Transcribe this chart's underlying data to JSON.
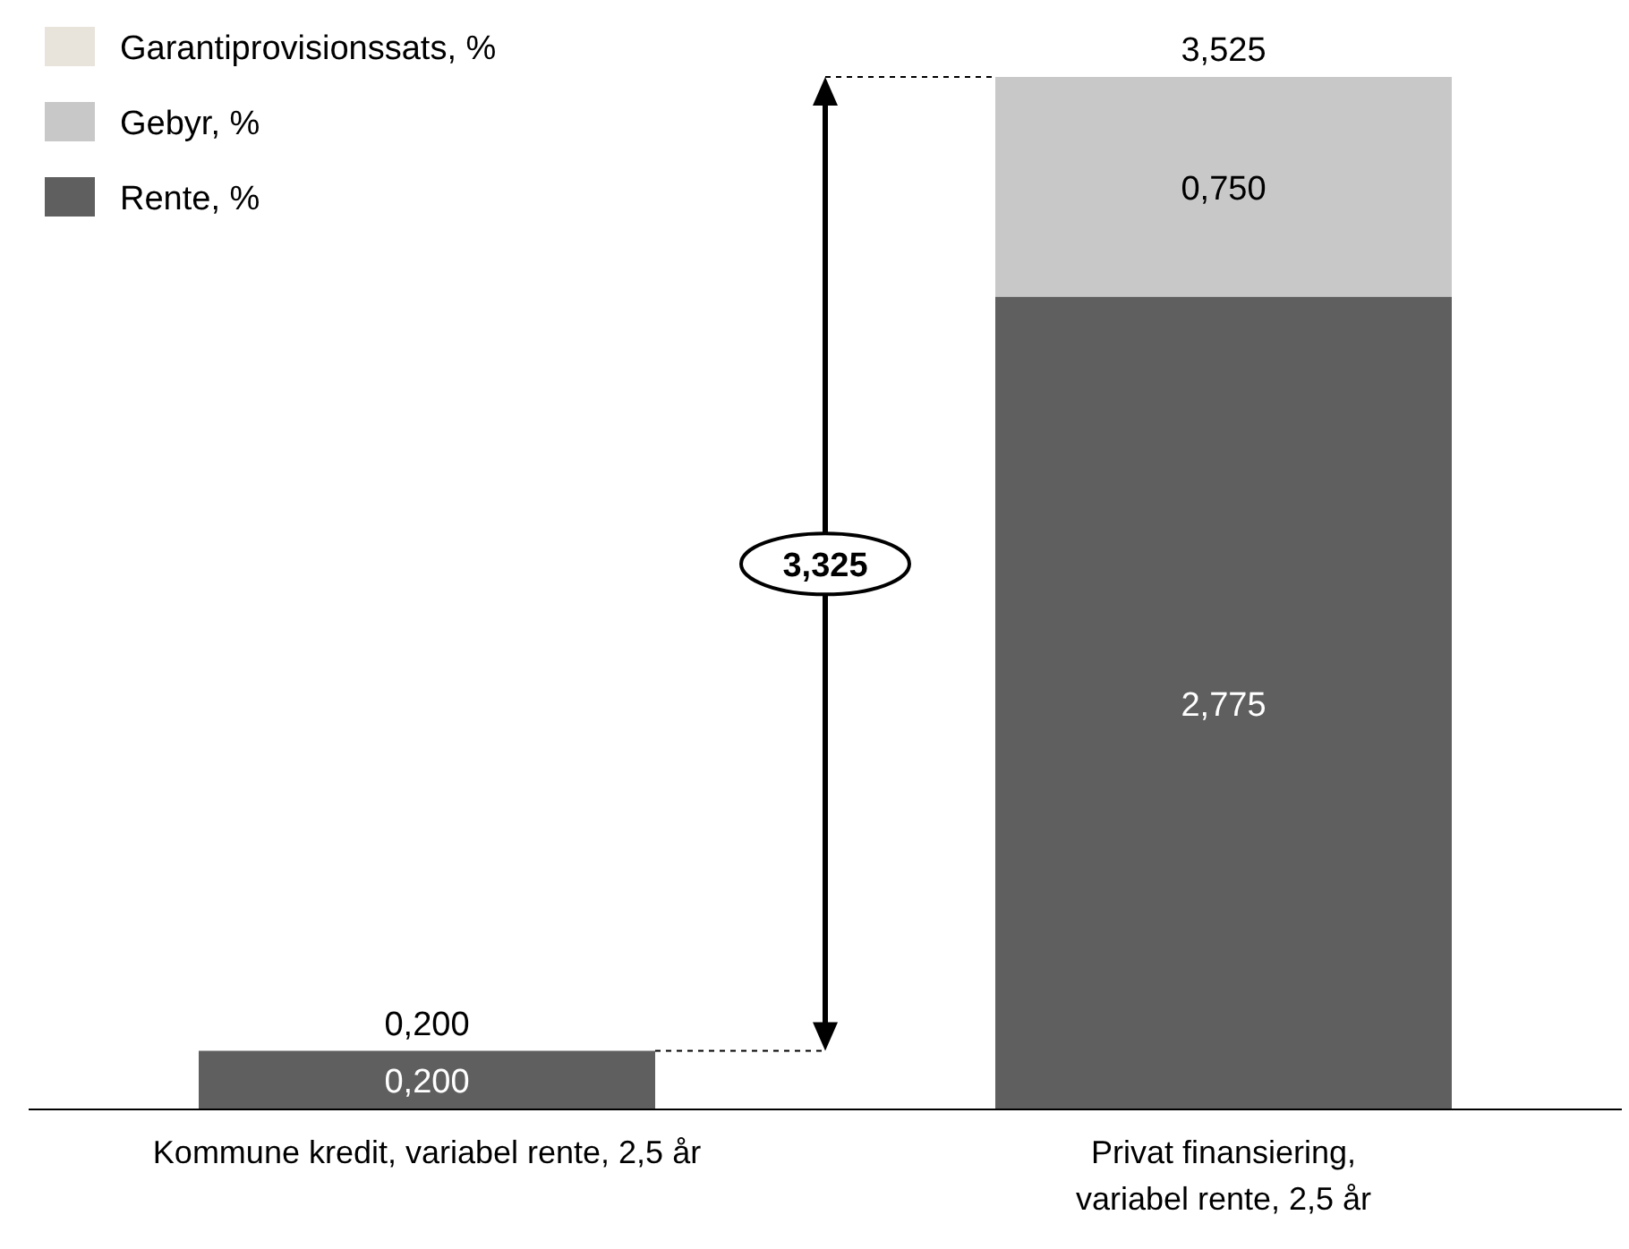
{
  "chart_data": {
    "type": "bar",
    "stacked": true,
    "categories": [
      "Kommune kredit, variabel rente, 2,5 år",
      "Privat finansiering,\nvariabel rente, 2,5 år"
    ],
    "series": [
      {
        "name": "Rente, %",
        "color": "#5f5f5f",
        "values": [
          0.2,
          2.775
        ],
        "value_labels": [
          "0,200",
          "2,775"
        ]
      },
      {
        "name": "Gebyr, %",
        "color": "#c8c8c8",
        "values": [
          0,
          0.75
        ],
        "value_labels": [
          null,
          "0,750"
        ]
      },
      {
        "name": "Garantiprovisionssats, %",
        "color": "#e8e4dc",
        "values": [
          null,
          null
        ]
      }
    ],
    "totals": [
      "0,200",
      "3,525"
    ],
    "annotations": [
      "3,325"
    ],
    "legend": "top left",
    "tick_labels": "x"
  }
}
